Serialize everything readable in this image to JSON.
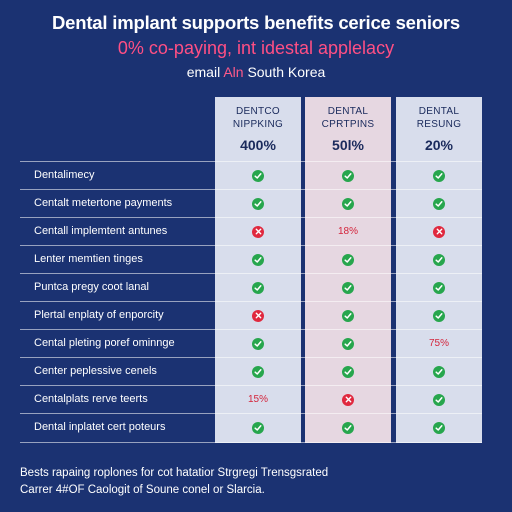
{
  "title": "Dental implant supports benefits cerice seniors",
  "subtitle": "0% co-paying, int idestal applelacy",
  "subtitle2_prefix": "email",
  "subtitle2_accent": "Aln",
  "subtitle2_suffix": "South Korea",
  "columns": [
    {
      "label": "DENTCO\nNIPPKING",
      "value": "400%"
    },
    {
      "label": "DENTAL\nCPRTPINS",
      "value": "50l%"
    },
    {
      "label": "DENTAL\nRESUNG",
      "value": "20%"
    }
  ],
  "rows": [
    {
      "label": "Dentalimecy",
      "cells": [
        "check",
        "check",
        "check"
      ]
    },
    {
      "label": "Centalt metertone payments",
      "cells": [
        "check",
        "check",
        "check"
      ]
    },
    {
      "label": "Centall implemtent antunes",
      "cells": [
        "cross",
        "18%",
        "cross"
      ]
    },
    {
      "label": "Lenter memtien tinges",
      "cells": [
        "check",
        "check",
        "check"
      ]
    },
    {
      "label": "Puntca pregy coot lanal",
      "cells": [
        "check",
        "check",
        "check"
      ]
    },
    {
      "label": "Plertal enplaty of enporcity",
      "cells": [
        "cross",
        "check",
        "check"
      ]
    },
    {
      "label": "Cental pleting poref ominnge",
      "cells": [
        "check",
        "check",
        "75%"
      ]
    },
    {
      "label": "Center peplessive cenels",
      "cells": [
        "check",
        "check",
        "check"
      ]
    },
    {
      "label": "Centalplats rerve teerts",
      "cells": [
        "15%",
        "cross",
        "check"
      ]
    },
    {
      "label": "Dental inplatet cert poteurs",
      "cells": [
        "check",
        "check",
        "check"
      ]
    }
  ],
  "footnote_line1": "Bests rapaing roplones for cot hatatior Strgregi Trensgsrated",
  "footnote_line2": "Carrer 4#OF Caologit of Soune conel or Slarcia.",
  "colors": {
    "background": "#1b3272",
    "accent": "#ff4f84",
    "check": "#27a64d",
    "cross": "#e0283e"
  }
}
